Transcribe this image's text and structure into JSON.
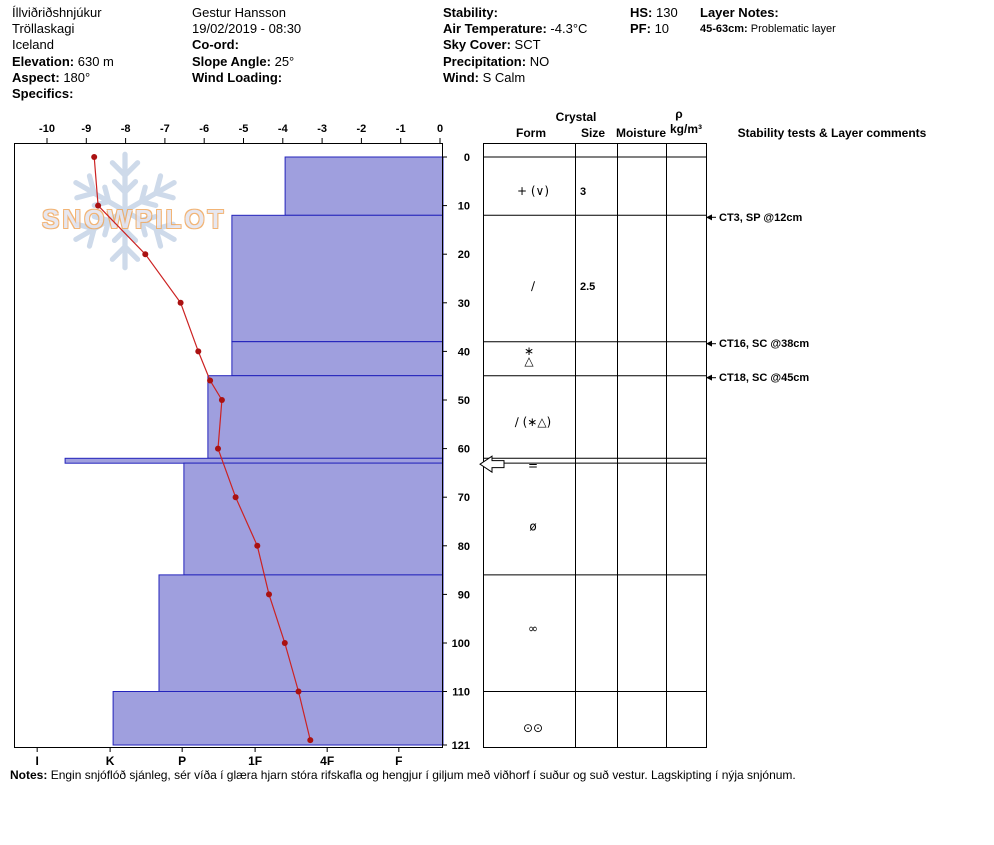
{
  "header": {
    "location_name": "Íllviðriðshnjúkur",
    "region": "Tröllaskagi",
    "country": "Iceland",
    "elevation_label": "Elevation:",
    "elevation_value": "630 m",
    "aspect_label": "Aspect:",
    "aspect_value": "180°",
    "specifics_label": "Specifics:",
    "observer": "Gestur Hansson",
    "datetime": "19/02/2019 - 08:30",
    "coord_label": "Co-ord:",
    "slope_angle_label": "Slope Angle:",
    "slope_angle_value": "25°",
    "wind_loading_label": "Wind Loading:",
    "stability_label": "Stability:",
    "air_temp_label": "Air Temperature:",
    "air_temp_value": "-4.3°C",
    "sky_cover_label": "Sky Cover:",
    "sky_cover_value": "SCT",
    "precipitation_label": "Precipitation:",
    "precipitation_value": "NO",
    "wind_label": "Wind:",
    "wind_value": "S Calm",
    "hs_label": "HS:",
    "hs_value": "130",
    "pf_label": "PF:",
    "pf_value": "10",
    "layer_notes_label": "Layer Notes:",
    "layer_note_range": "45-63cm:",
    "layer_note_text": "Problematic layer"
  },
  "watermark_text": "SNOWPILOT",
  "notes_label": "Notes:",
  "notes_text": "Engin snjóflóð sjánleg, sér víða í glæra hjarn stóra rifskafla og hengjur í giljum með viðhorf í suður og suð vestur. Lagskipting í nýja snjónum.",
  "chart_data": {
    "type": "snow-profile",
    "title": "Snow pit profile: hardness bars, temperature line, crystal forms and stability tests",
    "temp_axis": {
      "unit": "°C",
      "ticks": [
        -10,
        -9,
        -8,
        -7,
        -6,
        -5,
        -4,
        -3,
        -2,
        -1,
        0
      ],
      "min": -10,
      "max": 0
    },
    "depth_axis": {
      "unit": "cm",
      "ticks": [
        0,
        10,
        20,
        30,
        40,
        50,
        60,
        70,
        80,
        90,
        100,
        110,
        121
      ],
      "total_depth": 121
    },
    "hardness_axis": {
      "ticks": [
        "I",
        "K",
        "P",
        "1F",
        "4F",
        "F"
      ],
      "fracs": [
        0.054,
        0.224,
        0.392,
        0.562,
        0.73,
        0.897
      ]
    },
    "layers": [
      {
        "top_cm": 0,
        "bottom_cm": 12,
        "hardness_frac": 0.632
      },
      {
        "top_cm": 12,
        "bottom_cm": 38,
        "hardness_frac": 0.508
      },
      {
        "top_cm": 38,
        "bottom_cm": 45,
        "hardness_frac": 0.508
      },
      {
        "top_cm": 45,
        "bottom_cm": 62,
        "hardness_frac": 0.452
      },
      {
        "top_cm": 62,
        "bottom_cm": 63,
        "hardness_frac": 0.119
      },
      {
        "top_cm": 63,
        "bottom_cm": 86,
        "hardness_frac": 0.396
      },
      {
        "top_cm": 86,
        "bottom_cm": 110,
        "hardness_frac": 0.338
      },
      {
        "top_cm": 110,
        "bottom_cm": 121,
        "hardness_frac": 0.231
      }
    ],
    "temperature_profile_cm_c": [
      [
        0,
        -8.8
      ],
      [
        10,
        -8.7
      ],
      [
        20,
        -7.5
      ],
      [
        30,
        -6.6
      ],
      [
        40,
        -6.15
      ],
      [
        46,
        -5.85
      ],
      [
        50,
        -5.55
      ],
      [
        60,
        -5.65
      ],
      [
        70,
        -5.2
      ],
      [
        80,
        -4.65
      ],
      [
        90,
        -4.35
      ],
      [
        100,
        -3.95
      ],
      [
        110,
        -3.6
      ],
      [
        120,
        -3.3
      ]
    ],
    "crystals": [
      {
        "depth_cm": 7,
        "form": "+ (∨)",
        "size_mm": "3"
      },
      {
        "depth_cm": 26.5,
        "form": "∕",
        "size_mm": "2.5"
      },
      {
        "depth_cm": 41,
        "form": "∗|△",
        "size_mm": ""
      },
      {
        "depth_cm": 54.5,
        "form": "∕ (∗△)",
        "size_mm": ""
      },
      {
        "depth_cm": 63.5,
        "form": "=",
        "size_mm": ""
      },
      {
        "depth_cm": 76,
        "form": "ø",
        "size_mm": ""
      },
      {
        "depth_cm": 97,
        "form": "∞",
        "size_mm": ""
      },
      {
        "depth_cm": 117.5,
        "form": "⊙⊙",
        "size_mm": ""
      }
    ],
    "stability_tests": [
      {
        "depth_cm": 12,
        "label": "CT3, SP @12cm"
      },
      {
        "depth_cm": 38,
        "label": "CT16, SC @38cm"
      },
      {
        "depth_cm": 45,
        "label": "CT18, SC @45cm"
      }
    ],
    "problem_marker_depth_cm": 63,
    "panel_row_boundaries_cm": [
      0,
      12,
      38,
      45,
      62,
      63,
      86,
      110
    ],
    "panel_headers": {
      "crystal": "Crystal",
      "form": "Form",
      "size": "Size",
      "moisture": "Moisture",
      "rho": "ρ",
      "rho_unit": "kg/m³",
      "comments": "Stability tests & Layer comments"
    },
    "colors": {
      "bar_fill": "#9f9fde",
      "bar_border": "#2323bb",
      "temp_line": "#cc2222",
      "temp_marker": "#aa1111"
    }
  }
}
